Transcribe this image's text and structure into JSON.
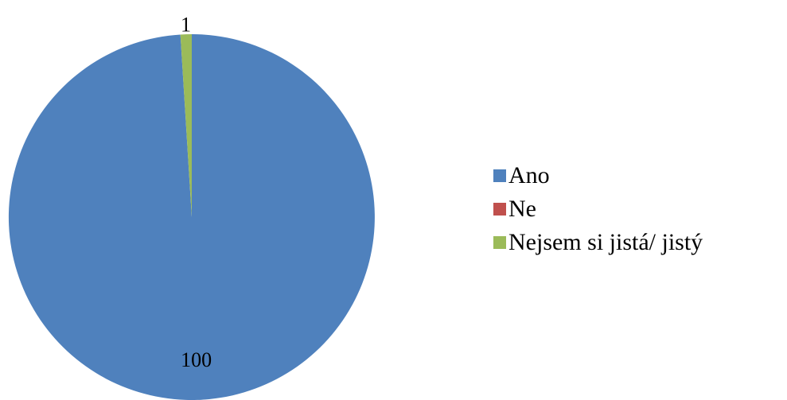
{
  "chart_data": {
    "type": "pie",
    "title": "",
    "slices": [
      {
        "label": "Ano",
        "value": 100,
        "color": "#4F81BD",
        "data_label": "100"
      },
      {
        "label": "Ne",
        "value": 0,
        "color": "#C0504D",
        "data_label": ""
      },
      {
        "label": "Nejsem si jistá/ jistý",
        "value": 1,
        "color": "#9BBB59",
        "data_label": "1"
      }
    ],
    "legend_position": "right"
  }
}
